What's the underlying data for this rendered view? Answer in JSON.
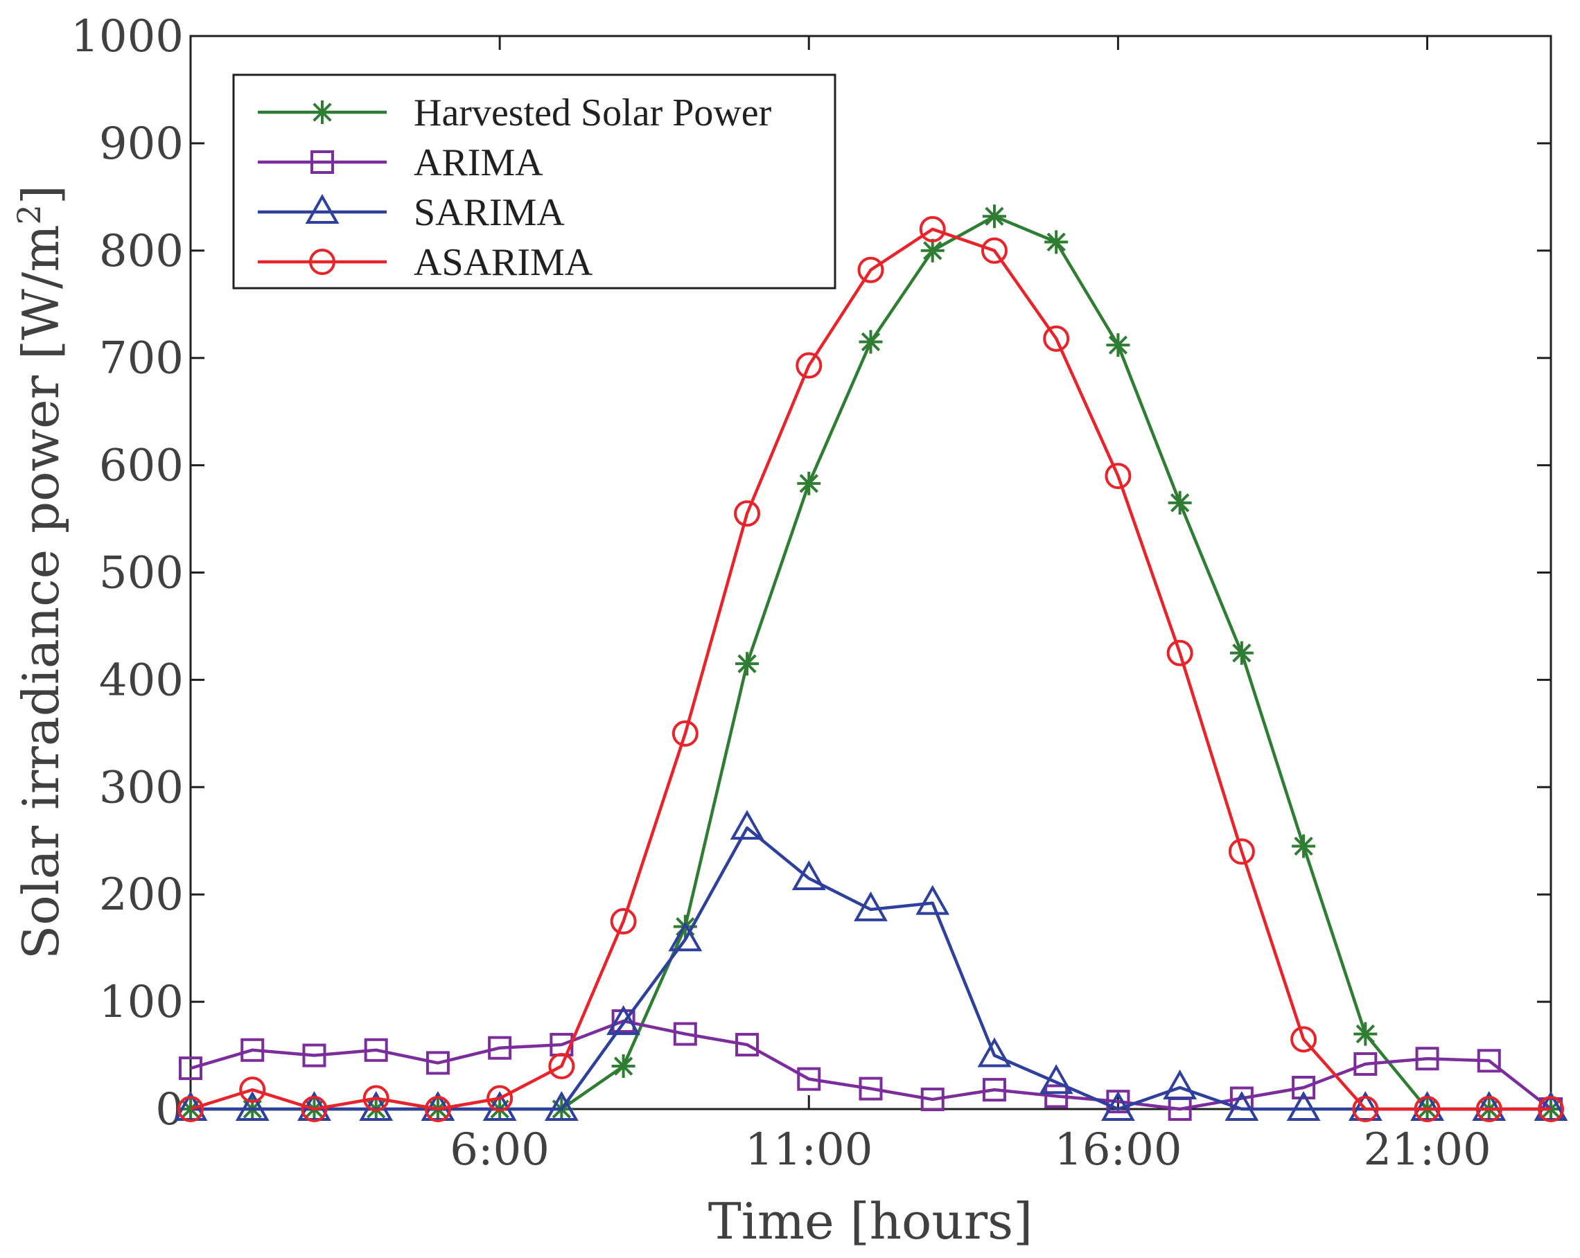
{
  "chart_data": {
    "type": "line",
    "xlabel": "Time [hours]",
    "ylabel": "Solar irradiance power [W/m",
    "ylabel_superscript": "2",
    "ylabel_close": "]",
    "xlim": [
      1,
      23
    ],
    "ylim": [
      0,
      1000
    ],
    "x_ticks": [
      {
        "value": 6,
        "label": "6:00"
      },
      {
        "value": 11,
        "label": "11:00"
      },
      {
        "value": 16,
        "label": "16:00"
      },
      {
        "value": 21,
        "label": "21:00"
      }
    ],
    "y_ticks": [
      {
        "value": 0,
        "label": "0"
      },
      {
        "value": 100,
        "label": "100"
      },
      {
        "value": 200,
        "label": "200"
      },
      {
        "value": 300,
        "label": "300"
      },
      {
        "value": 400,
        "label": "400"
      },
      {
        "value": 500,
        "label": "500"
      },
      {
        "value": 600,
        "label": "600"
      },
      {
        "value": 700,
        "label": "700"
      },
      {
        "value": 800,
        "label": "800"
      },
      {
        "value": 900,
        "label": "900"
      },
      {
        "value": 1000,
        "label": "1000"
      }
    ],
    "legend_position": "top-left",
    "x": [
      1,
      2,
      3,
      4,
      5,
      6,
      7,
      8,
      9,
      10,
      11,
      12,
      13,
      14,
      15,
      16,
      17,
      18,
      19,
      20,
      21,
      22,
      23
    ],
    "series": [
      {
        "name": "Harvested Solar Power",
        "color": "#2e7d32",
        "marker": "asterisk",
        "values": [
          0,
          0,
          0,
          0,
          0,
          0,
          0,
          40,
          170,
          415,
          583,
          715,
          800,
          832,
          808,
          712,
          565,
          425,
          245,
          70,
          0,
          0,
          0
        ]
      },
      {
        "name": "ARIMA",
        "color": "#7b2d9b",
        "marker": "square",
        "values": [
          38,
          55,
          50,
          55,
          43,
          57,
          60,
          82,
          70,
          60,
          28,
          19,
          9,
          18,
          12,
          7,
          0,
          10,
          20,
          42,
          47,
          45,
          0
        ]
      },
      {
        "name": "SARIMA",
        "color": "#2e3f9e",
        "marker": "triangle",
        "values": [
          0,
          0,
          0,
          0,
          0,
          0,
          0,
          80,
          158,
          262,
          215,
          186,
          192,
          50,
          25,
          0,
          20,
          0,
          0,
          0,
          0,
          0,
          0
        ]
      },
      {
        "name": "ASARIMA",
        "color": "#e8232a",
        "marker": "circle",
        "values": [
          0,
          18,
          0,
          10,
          0,
          10,
          40,
          175,
          350,
          555,
          693,
          782,
          820,
          800,
          718,
          590,
          425,
          240,
          65,
          0,
          0,
          0,
          0
        ]
      }
    ]
  }
}
